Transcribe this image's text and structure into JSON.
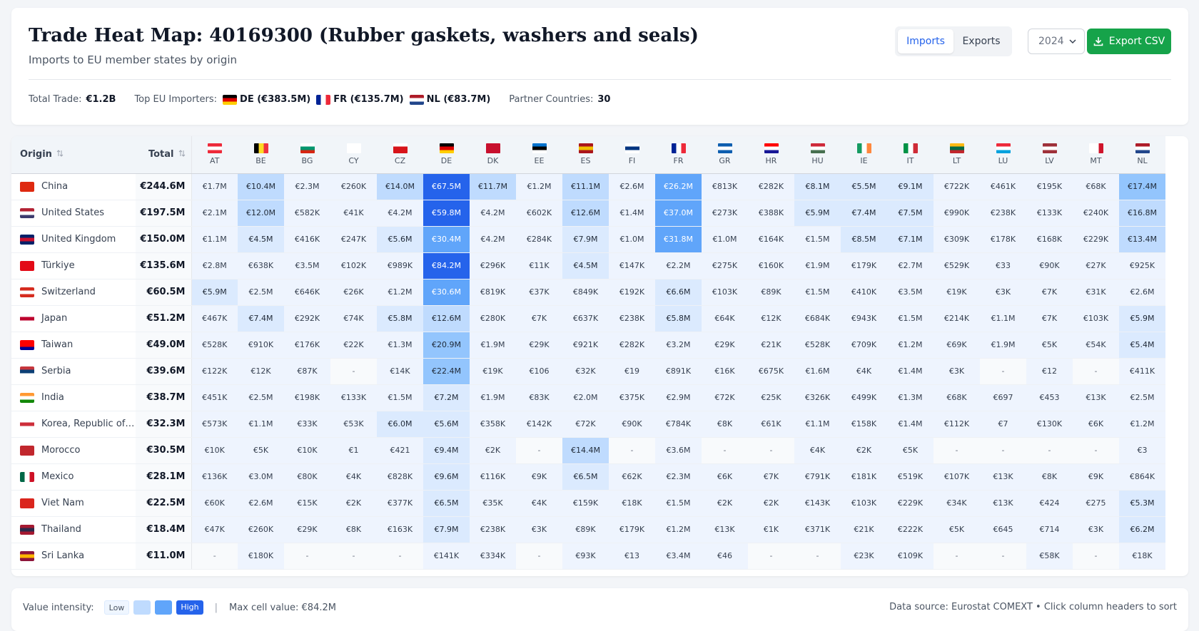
{
  "header": {
    "title": "Trade Heat Map: 40169300 (Rubber gaskets, washers and seals)",
    "subtitle": "Imports to EU member states by origin",
    "toggle": [
      "Imports",
      "Exports"
    ],
    "year": "2024",
    "export_button": "Export CSV"
  },
  "stats": {
    "total_label": "Total Trade:",
    "total_value": "€1.2B",
    "top_label": "Top EU Importers:",
    "top": [
      {
        "code": "DE",
        "text": "DE (€383.5M)"
      },
      {
        "code": "FR",
        "text": "FR (€135.7M)"
      },
      {
        "code": "NL",
        "text": "NL (€83.7M)"
      }
    ],
    "partner_label": "Partner Countries:",
    "partner_value": "30"
  },
  "table": {
    "columns": [
      "Origin",
      "Total"
    ],
    "countries": [
      "AT",
      "BE",
      "BG",
      "CY",
      "CZ",
      "DE",
      "DK",
      "EE",
      "ES",
      "FI",
      "FR",
      "GR",
      "HR",
      "HU",
      "IE",
      "IT",
      "LT",
      "LU",
      "LV",
      "MT",
      "NL"
    ],
    "rows": [
      {
        "origin": "China",
        "total": "€244.6M",
        "cells": [
          "€1.7M",
          "€10.4M",
          "€2.3M",
          "€260K",
          "€14.0M",
          "€67.5M",
          "€11.7M",
          "€1.2M",
          "€11.1M",
          "€2.6M",
          "€26.2M",
          "€813K",
          "€282K",
          "€8.1M",
          "€5.5M",
          "€9.1M",
          "€722K",
          "€461K",
          "€195K",
          "€68K",
          "€17.4M"
        ]
      },
      {
        "origin": "United States",
        "total": "€197.5M",
        "cells": [
          "€2.1M",
          "€12.0M",
          "€582K",
          "€41K",
          "€4.2M",
          "€59.8M",
          "€4.2M",
          "€602K",
          "€12.6M",
          "€1.4M",
          "€37.0M",
          "€273K",
          "€388K",
          "€5.9M",
          "€7.4M",
          "€7.5M",
          "€990K",
          "€238K",
          "€133K",
          "€240K",
          "€16.8M"
        ]
      },
      {
        "origin": "United Kingdom",
        "total": "€150.0M",
        "cells": [
          "€1.1M",
          "€4.5M",
          "€416K",
          "€247K",
          "€5.6M",
          "€30.4M",
          "€4.2M",
          "€284K",
          "€7.9M",
          "€1.0M",
          "€31.8M",
          "€1.0M",
          "€164K",
          "€1.5M",
          "€8.5M",
          "€7.1M",
          "€309K",
          "€178K",
          "€168K",
          "€229K",
          "€13.4M"
        ]
      },
      {
        "origin": "Türkiye",
        "total": "€135.6M",
        "cells": [
          "€2.8M",
          "€638K",
          "€3.5M",
          "€102K",
          "€989K",
          "€84.2M",
          "€296K",
          "€11K",
          "€4.5M",
          "€147K",
          "€2.2M",
          "€275K",
          "€160K",
          "€1.9M",
          "€179K",
          "€2.7M",
          "€529K",
          "€33",
          "€90K",
          "€27K",
          "€925K"
        ]
      },
      {
        "origin": "Switzerland",
        "total": "€60.5M",
        "cells": [
          "€5.9M",
          "€2.5M",
          "€646K",
          "€26K",
          "€1.2M",
          "€30.6M",
          "€819K",
          "€37K",
          "€849K",
          "€192K",
          "€6.6M",
          "€103K",
          "€89K",
          "€1.5M",
          "€410K",
          "€3.5M",
          "€19K",
          "€3K",
          "€7K",
          "€31K",
          "€2.6M"
        ]
      },
      {
        "origin": "Japan",
        "total": "€51.2M",
        "cells": [
          "€467K",
          "€7.4M",
          "€292K",
          "€74K",
          "€5.8M",
          "€12.6M",
          "€280K",
          "€7K",
          "€637K",
          "€238K",
          "€5.8M",
          "€64K",
          "€12K",
          "€684K",
          "€943K",
          "€1.5M",
          "€214K",
          "€1.1M",
          "€7K",
          "€103K",
          "€5.9M"
        ]
      },
      {
        "origin": "Taiwan",
        "total": "€49.0M",
        "cells": [
          "€528K",
          "€910K",
          "€176K",
          "€22K",
          "€1.3M",
          "€20.9M",
          "€1.9M",
          "€29K",
          "€921K",
          "€282K",
          "€3.2M",
          "€29K",
          "€21K",
          "€528K",
          "€709K",
          "€1.2M",
          "€69K",
          "€1.9M",
          "€5K",
          "€54K",
          "€5.4M"
        ]
      },
      {
        "origin": "Serbia",
        "total": "€39.6M",
        "cells": [
          "€122K",
          "€12K",
          "€87K",
          "-",
          "€14K",
          "€22.4M",
          "€19K",
          "€106",
          "€32K",
          "€19",
          "€891K",
          "€16K",
          "€675K",
          "€1.6M",
          "€4K",
          "€1.4M",
          "€3K",
          "-",
          "€12",
          "-",
          "€411K"
        ]
      },
      {
        "origin": "India",
        "total": "€38.7M",
        "cells": [
          "€451K",
          "€2.5M",
          "€198K",
          "€133K",
          "€1.5M",
          "€7.2M",
          "€1.9M",
          "€83K",
          "€2.0M",
          "€375K",
          "€2.9M",
          "€72K",
          "€25K",
          "€326K",
          "€499K",
          "€1.3M",
          "€68K",
          "€697",
          "€453",
          "€13K",
          "€2.5M"
        ]
      },
      {
        "origin": "Korea, Republic of…",
        "total": "€32.3M",
        "cells": [
          "€573K",
          "€1.1M",
          "€33K",
          "€53K",
          "€6.0M",
          "€5.6M",
          "€358K",
          "€142K",
          "€72K",
          "€90K",
          "€784K",
          "€8K",
          "€61K",
          "€1.1M",
          "€158K",
          "€1.4M",
          "€112K",
          "€7",
          "€130K",
          "€6K",
          "€1.2M"
        ]
      },
      {
        "origin": "Morocco",
        "total": "€30.5M",
        "cells": [
          "€10K",
          "€5K",
          "€10K",
          "€1",
          "€421",
          "€9.4M",
          "€2K",
          "-",
          "€14.4M",
          "-",
          "€3.6M",
          "-",
          "-",
          "€4K",
          "€2K",
          "€5K",
          "-",
          "-",
          "-",
          "-",
          "€3"
        ]
      },
      {
        "origin": "Mexico",
        "total": "€28.1M",
        "cells": [
          "€136K",
          "€3.0M",
          "€80K",
          "€4K",
          "€828K",
          "€9.6M",
          "€116K",
          "€9K",
          "€6.5M",
          "€62K",
          "€2.3M",
          "€6K",
          "€7K",
          "€791K",
          "€181K",
          "€519K",
          "€107K",
          "€13K",
          "€8K",
          "€9K",
          "€864K"
        ]
      },
      {
        "origin": "Viet Nam",
        "total": "€22.5M",
        "cells": [
          "€60K",
          "€2.6M",
          "€15K",
          "€2K",
          "€377K",
          "€6.5M",
          "€35K",
          "€4K",
          "€159K",
          "€18K",
          "€1.5M",
          "€2K",
          "€2K",
          "€143K",
          "€103K",
          "€229K",
          "€34K",
          "€13K",
          "€424",
          "€275",
          "€5.3M"
        ]
      },
      {
        "origin": "Thailand",
        "total": "€18.4M",
        "cells": [
          "€47K",
          "€260K",
          "€29K",
          "€8K",
          "€163K",
          "€7.9M",
          "€238K",
          "€3K",
          "€89K",
          "€179K",
          "€1.2M",
          "€13K",
          "€1K",
          "€371K",
          "€21K",
          "€222K",
          "€5K",
          "€645",
          "€714",
          "€3K",
          "€6.2M"
        ]
      },
      {
        "origin": "Sri Lanka",
        "total": "€11.0M",
        "cells": [
          "-",
          "€180K",
          "-",
          "-",
          "-",
          "€141K",
          "€334K",
          "-",
          "€93K",
          "€13",
          "€3.4M",
          "€46",
          "-",
          "-",
          "€23K",
          "€109K",
          "-",
          "-",
          "€58K",
          "-",
          "€18K"
        ]
      }
    ]
  },
  "footer": {
    "intensity_label": "Value intensity:",
    "low": "Low",
    "high": "High",
    "max": "Max cell value: €84.2M",
    "source": "Data source: Eurostat COMEXT • Click column headers to sort"
  }
}
